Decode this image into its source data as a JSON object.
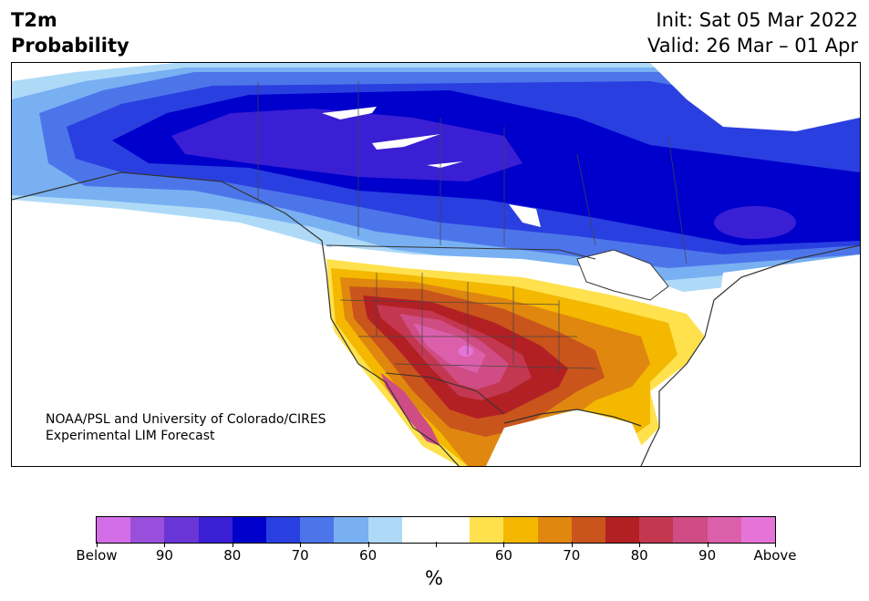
{
  "title": {
    "line1": "T2m",
    "line2": "Probability"
  },
  "init": "Init: Sat 05 Mar 2022",
  "valid": "Valid: 26 Mar – 01 Apr",
  "credit": {
    "line1": "NOAA/PSL and University of Colorado/CIRES",
    "line2": "Experimental LIM Forecast"
  },
  "colorbar": {
    "colors": [
      "#d46ee8",
      "#9a4fdc",
      "#6a35d6",
      "#3a1fd4",
      "#0000cc",
      "#2a3fe0",
      "#4d75ea",
      "#78b0f2",
      "#aedaf8",
      "#ffffff",
      "#ffffff",
      "#ffe14d",
      "#f4b800",
      "#e0870f",
      "#c9541c",
      "#b22024",
      "#c43751",
      "#cf4d84",
      "#dc5fab",
      "#e674d8"
    ],
    "labels": [
      "Below",
      "90",
      "80",
      "70",
      "60",
      "",
      "60",
      "70",
      "80",
      "90",
      "Above"
    ],
    "unit": "%"
  }
}
